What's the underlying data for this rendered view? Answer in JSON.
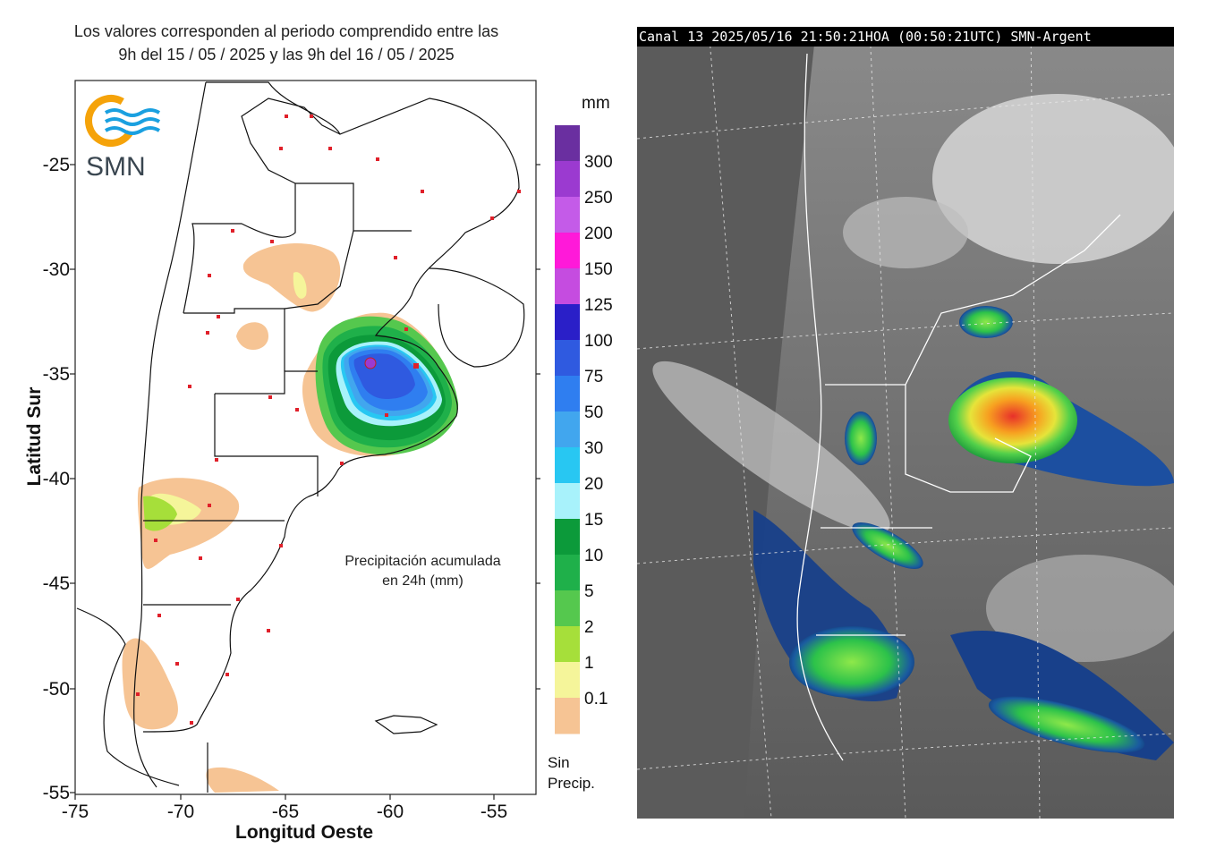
{
  "left_panel": {
    "header_line1": "Los valores corresponden al periodo comprendido entre las",
    "header_line2": "9h del 15 / 05 / 2025  y las 9h del 16 / 05 / 2025",
    "logo_text": "SMN",
    "caption_line1": "Precipitación acumulada",
    "caption_line2": "en 24h (mm)",
    "x_axis_title": "Longitud Oeste",
    "y_axis_title": "Latitud Sur",
    "x_ticks": [
      "-75",
      "-70",
      "-65",
      "-60",
      "-55"
    ],
    "y_ticks": [
      "-25",
      "-30",
      "-35",
      "-40",
      "-45",
      "-50",
      "-55"
    ],
    "legend_unit": "mm",
    "legend_labels": [
      "300",
      "250",
      "200",
      "150",
      "125",
      "100",
      "75",
      "50",
      "30",
      "20",
      "15",
      "10",
      "5",
      "2",
      "1",
      "0.1"
    ],
    "legend_colors": [
      "#6a2fa0",
      "#9b3ad0",
      "#c45be8",
      "#ff19d9",
      "#c54ce0",
      "#2a1fc8",
      "#2f5ae0",
      "#2f7ef0",
      "#41a6ee",
      "#28c7f2",
      "#a8f2fb",
      "#0c9a3a",
      "#1fb04a",
      "#55c84e",
      "#a6df3a",
      "#f5f59a",
      "#f6c494"
    ],
    "legend_no_precip": "Sin\nPrecip.",
    "legend_no_precip_line1": "Sin",
    "legend_no_precip_line2": "Precip."
  },
  "right_panel": {
    "status_bar": "Canal 13 2025/05/16 21:50:21HOA (00:50:21UTC) SMN-Argent"
  }
}
